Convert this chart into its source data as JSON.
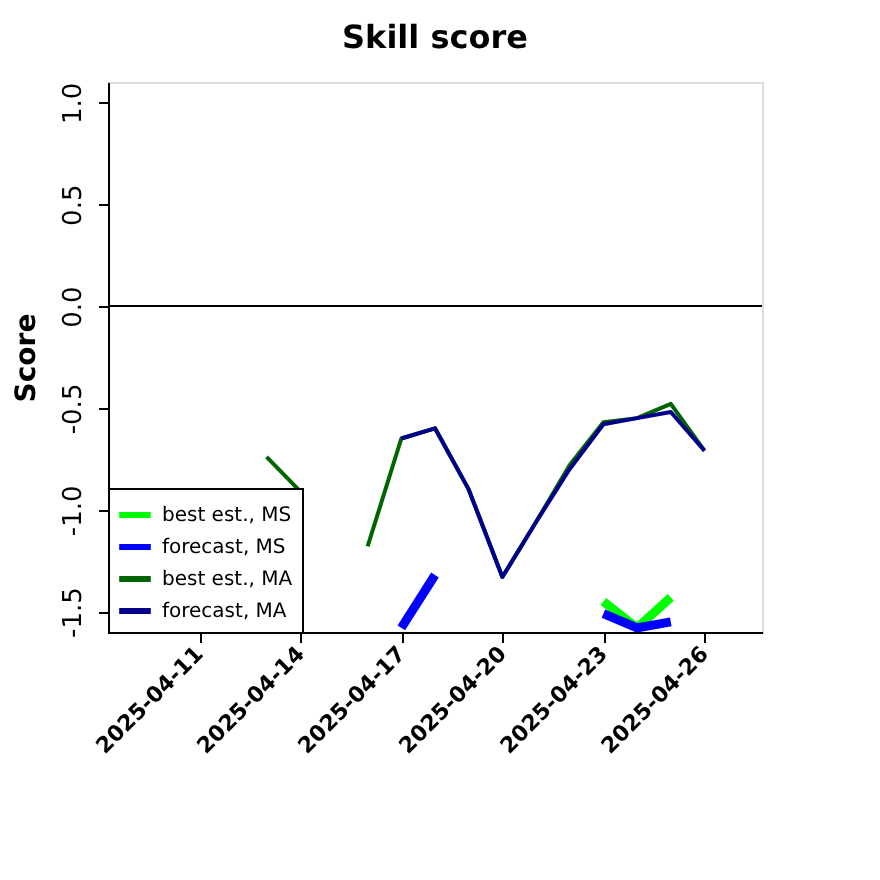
{
  "chart_data": {
    "type": "line",
    "title": "Skill score",
    "ylabel": "Score",
    "x": [
      "2025-04-13",
      "2025-04-14",
      "2025-04-15",
      "2025-04-16",
      "2025-04-17",
      "2025-04-18",
      "2025-04-19",
      "2025-04-20",
      "2025-04-21",
      "2025-04-22",
      "2025-04-23",
      "2025-04-24",
      "2025-04-25",
      "2025-04-26"
    ],
    "series": [
      {
        "name": "best est., MS",
        "color": "#00ff00",
        "values": [
          null,
          null,
          null,
          null,
          null,
          null,
          null,
          null,
          null,
          null,
          -1.45,
          -1.58,
          -1.43,
          null
        ]
      },
      {
        "name": "forecast, MS",
        "color": "#0000ff",
        "values": [
          null,
          null,
          null,
          null,
          -1.58,
          -1.32,
          null,
          null,
          null,
          null,
          -1.51,
          -1.58,
          -1.55,
          null
        ]
      },
      {
        "name": "best est., MA",
        "color": "#006400",
        "values": [
          -0.74,
          -0.91,
          null,
          -1.18,
          -0.65,
          -0.6,
          -0.9,
          -1.33,
          -1.06,
          -0.78,
          -0.57,
          -0.55,
          -0.48,
          -0.71
        ]
      },
      {
        "name": "forecast, MA",
        "color": "#00008b",
        "values": [
          null,
          null,
          null,
          null,
          -0.65,
          -0.6,
          -0.9,
          -1.33,
          -1.06,
          -0.8,
          -0.58,
          -0.55,
          -0.52,
          -0.71
        ]
      }
    ],
    "xlim": [
      "2025-04-08T07:00",
      "2025-04-27T17:00"
    ],
    "xticks": [
      "2025-04-11",
      "2025-04-14",
      "2025-04-17",
      "2025-04-20",
      "2025-04-23",
      "2025-04-26"
    ],
    "ylim": [
      -1.6,
      1.1
    ],
    "yticks": [
      -1.5,
      {
        "value": -1.0,
        "label": "-1.0"
      },
      -0.5,
      {
        "value": 0.0,
        "label": "0.0"
      },
      0.5,
      {
        "value": 1.0,
        "label": "1.0"
      }
    ],
    "ref_lines": [
      {
        "axis": "y",
        "value": 0,
        "color": "#000000"
      }
    ],
    "grid": false,
    "legend": "bottom left",
    "line_style": "solid",
    "marker": "none"
  }
}
